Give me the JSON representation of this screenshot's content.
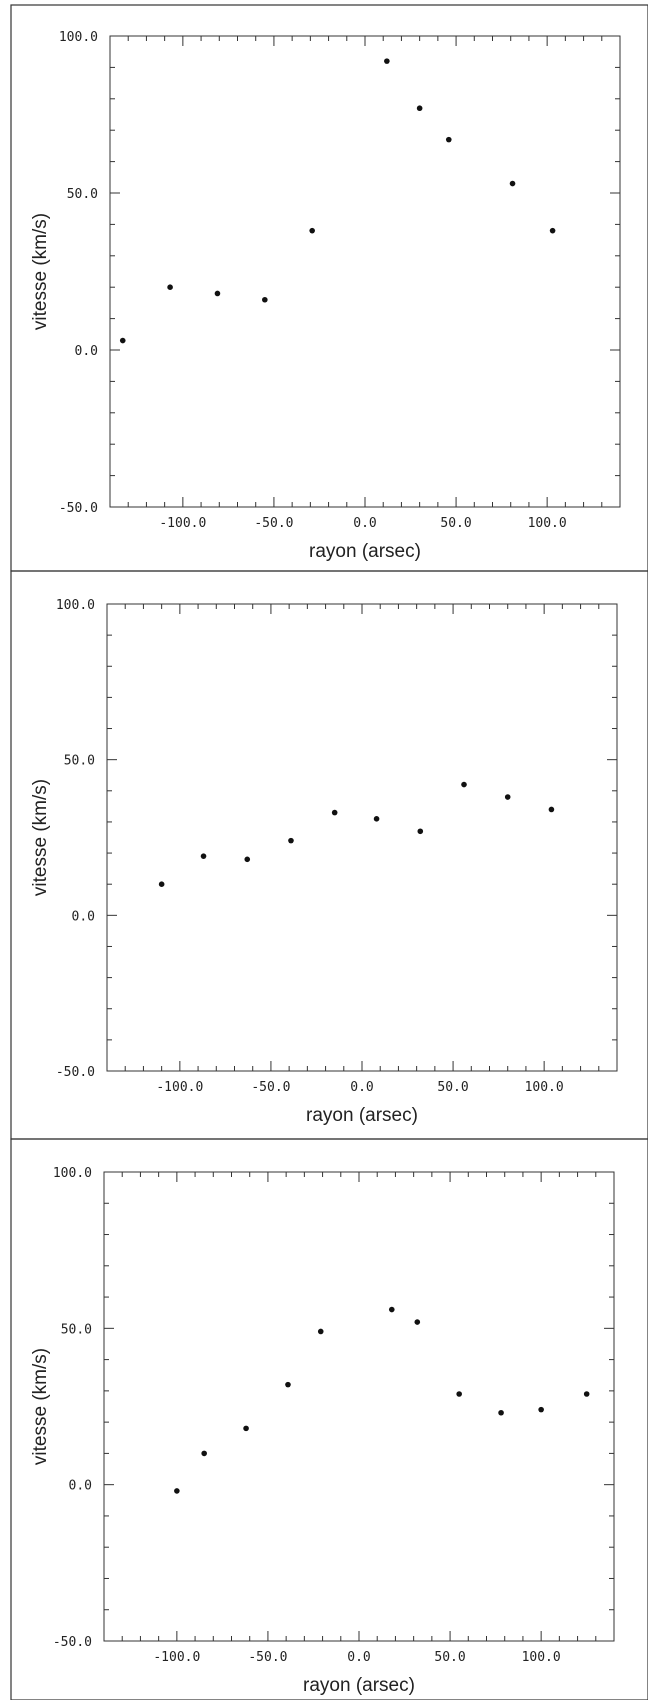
{
  "chart_data": [
    {
      "type": "scatter",
      "title": "",
      "xlabel": "rayon (arsec)",
      "ylabel": "vitesse (km/s)",
      "xlim": [
        -140,
        140
      ],
      "ylim": [
        -50,
        100
      ],
      "x_ticks": [
        "-100.0",
        "-50.0",
        "0.0",
        "50.0",
        "100.0"
      ],
      "y_ticks": [
        "100.0",
        "50.0",
        "0.0",
        "-50.0"
      ],
      "grid": false,
      "series": [
        {
          "points": [
            {
              "x": -133,
              "y": 3
            },
            {
              "x": -107,
              "y": 20
            },
            {
              "x": -81,
              "y": 18
            },
            {
              "x": -55,
              "y": 16
            },
            {
              "x": -29,
              "y": 38
            },
            {
              "x": 12,
              "y": 92
            },
            {
              "x": 30,
              "y": 77
            },
            {
              "x": 46,
              "y": 67
            },
            {
              "x": 81,
              "y": 53
            },
            {
              "x": 103,
              "y": 38
            }
          ]
        }
      ]
    },
    {
      "type": "scatter",
      "title": "",
      "xlabel": "rayon (arsec)",
      "ylabel": "vitesse (km/s)",
      "xlim": [
        -140,
        140
      ],
      "ylim": [
        -50,
        100
      ],
      "x_ticks": [
        "-100.0",
        "-50.0",
        "0.0",
        "50.0",
        "100.0"
      ],
      "y_ticks": [
        "100.0",
        "50.0",
        "0.0",
        "-50.0"
      ],
      "grid": false,
      "series": [
        {
          "points": [
            {
              "x": -110,
              "y": 10
            },
            {
              "x": -87,
              "y": 19
            },
            {
              "x": -63,
              "y": 18
            },
            {
              "x": -39,
              "y": 24
            },
            {
              "x": -15,
              "y": 33
            },
            {
              "x": 8,
              "y": 31
            },
            {
              "x": 32,
              "y": 27
            },
            {
              "x": 56,
              "y": 42
            },
            {
              "x": 80,
              "y": 38
            },
            {
              "x": 104,
              "y": 34
            }
          ]
        }
      ]
    },
    {
      "type": "scatter",
      "title": "",
      "xlabel": "rayon (arsec)",
      "ylabel": "vitesse (km/s)",
      "xlim": [
        -140,
        140
      ],
      "ylim": [
        -50,
        100
      ],
      "x_ticks": [
        "-100.0",
        "-50.0",
        "0.0",
        "50.0",
        "100.0"
      ],
      "y_ticks": [
        "100.0",
        "50.0",
        "0.0",
        "-50.0"
      ],
      "grid": false,
      "series": [
        {
          "points": [
            {
              "x": -100,
              "y": -2
            },
            {
              "x": -85,
              "y": 10
            },
            {
              "x": -62,
              "y": 18
            },
            {
              "x": -39,
              "y": 32
            },
            {
              "x": -21,
              "y": 49
            },
            {
              "x": 18,
              "y": 56
            },
            {
              "x": 32,
              "y": 52
            },
            {
              "x": 55,
              "y": 29
            },
            {
              "x": 78,
              "y": 23
            },
            {
              "x": 100,
              "y": 24
            },
            {
              "x": 125,
              "y": 29
            }
          ]
        }
      ]
    }
  ]
}
